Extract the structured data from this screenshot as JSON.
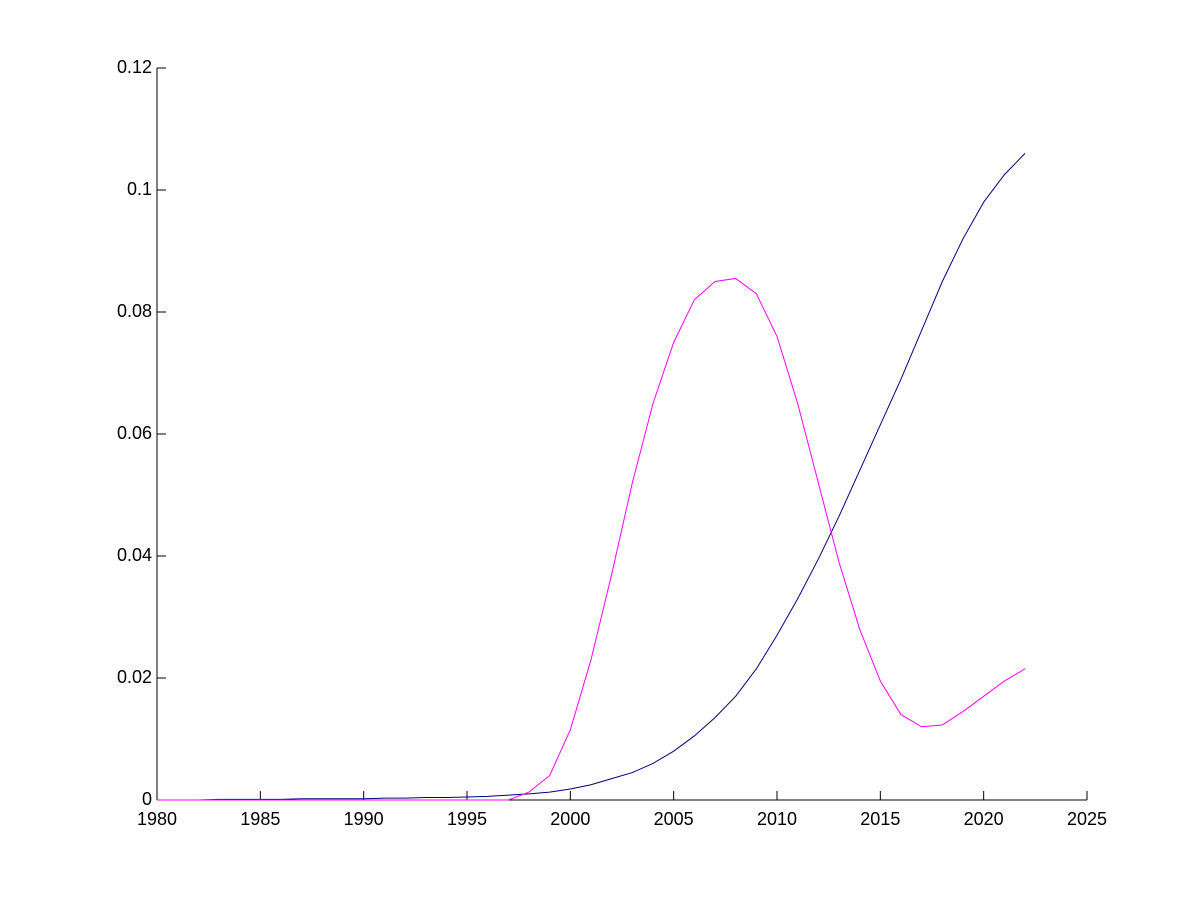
{
  "chart_data": {
    "type": "line",
    "x": [
      1980,
      1981,
      1982,
      1983,
      1984,
      1985,
      1986,
      1987,
      1988,
      1989,
      1990,
      1991,
      1992,
      1993,
      1994,
      1995,
      1996,
      1997,
      1998,
      1999,
      2000,
      2001,
      2002,
      2003,
      2004,
      2005,
      2006,
      2007,
      2008,
      2009,
      2010,
      2011,
      2012,
      2013,
      2014,
      2015,
      2016,
      2017,
      2018,
      2019,
      2020,
      2021,
      2022
    ],
    "series": [
      {
        "color": "#00007f",
        "values": [
          0,
          0,
          0,
          0.0001,
          0.0001,
          0.0001,
          0.0001,
          0.0002,
          0.0002,
          0.0002,
          0.0002,
          0.0003,
          0.0003,
          0.0004,
          0.0004,
          0.0005,
          0.0006,
          0.0008,
          0.001,
          0.0013,
          0.0018,
          0.0025,
          0.0035,
          0.0045,
          0.006,
          0.008,
          0.0105,
          0.0135,
          0.017,
          0.0215,
          0.027,
          0.033,
          0.0395,
          0.0465,
          0.054,
          0.0615,
          0.069,
          0.077,
          0.085,
          0.092,
          0.098,
          0.1025,
          0.106
        ]
      },
      {
        "color": "#ff00ff",
        "values": [
          0,
          0,
          0,
          0,
          0,
          0,
          0,
          0,
          0,
          0,
          0,
          0,
          0,
          0,
          0,
          0,
          0,
          0,
          0.0013,
          0.004,
          0.0115,
          0.023,
          0.037,
          0.052,
          0.065,
          0.075,
          0.082,
          0.085,
          0.0855,
          0.083,
          0.076,
          0.065,
          0.052,
          0.039,
          0.028,
          0.0195,
          0.014,
          0.012,
          0.0123,
          0.0145,
          0.017,
          0.0195,
          0.0215
        ]
      }
    ],
    "xlim": [
      1980,
      2025
    ],
    "xticks": [
      1980,
      1985,
      1990,
      1995,
      2000,
      2005,
      2010,
      2015,
      2020,
      2025
    ],
    "ylim": [
      0,
      0.12
    ],
    "yticks": [
      0,
      0.02,
      0.04,
      0.06,
      0.08,
      0.1,
      0.12
    ]
  }
}
